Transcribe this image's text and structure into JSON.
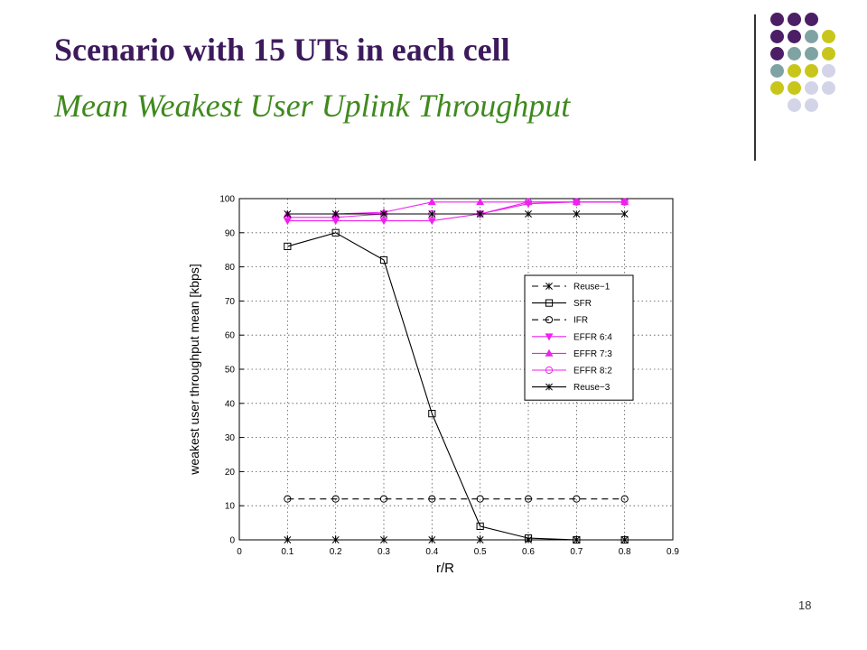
{
  "slide": {
    "title": "Scenario with 15 UTs in each cell",
    "subtitle": "Mean Weakest User Uplink Throughput",
    "page_number": "18",
    "colors": {
      "title": "#3d1a5c",
      "subtitle": "#3f8a1e",
      "dot_purple": "#4b1e66",
      "dot_teal": "#7fa3a3",
      "dot_olive": "#c8c61a",
      "dot_lavender": "#d4d4e8"
    }
  },
  "chart_data": {
    "type": "line",
    "title": "",
    "xlabel": "r/R",
    "ylabel": "weakest user throughput mean [kbps]",
    "xlim": [
      0,
      0.9
    ],
    "ylim": [
      0,
      100
    ],
    "xticks": [
      "0",
      "0.1",
      "0.2",
      "0.3",
      "0.4",
      "0.5",
      "0.6",
      "0.7",
      "0.8",
      "0.9"
    ],
    "yticks": [
      "0",
      "10",
      "20",
      "30",
      "40",
      "50",
      "60",
      "70",
      "80",
      "90",
      "100"
    ],
    "grid": true,
    "legend_position": "center-right",
    "x": [
      0.1,
      0.2,
      0.3,
      0.4,
      0.5,
      0.6,
      0.7,
      0.8
    ],
    "series": [
      {
        "name": "Reuse−1",
        "values": [
          0,
          0,
          0,
          0,
          0,
          0,
          0,
          0
        ],
        "color": "#000000",
        "dash": "dash",
        "marker": "star"
      },
      {
        "name": "SFR",
        "values": [
          86,
          90,
          82,
          37,
          4,
          0.5,
          0,
          0
        ],
        "color": "#000000",
        "dash": "solid",
        "marker": "square"
      },
      {
        "name": "IFR",
        "values": [
          12,
          12,
          12,
          12,
          12,
          12,
          12,
          12
        ],
        "color": "#000000",
        "dash": "dash",
        "marker": "circle"
      },
      {
        "name": "EFFR 6:4",
        "values": [
          93.5,
          93.5,
          93.5,
          93.5,
          95.5,
          98.5,
          99,
          99
        ],
        "color": "#ee22ee",
        "dash": "solid",
        "marker": "triangle-down"
      },
      {
        "name": "EFFR 7:3",
        "values": [
          95.5,
          95.5,
          96,
          99,
          99,
          99,
          99,
          99
        ],
        "color": "#ee22ee",
        "dash": "solid",
        "marker": "triangle-up"
      },
      {
        "name": "EFFR 8:2",
        "values": [
          94.5,
          94.5,
          95.5,
          95.5,
          95.5,
          99,
          99,
          99
        ],
        "color": "#ee22ee",
        "dash": "solid",
        "marker": "circle"
      },
      {
        "name": "Reuse−3",
        "values": [
          95.5,
          95.5,
          95.5,
          95.5,
          95.5,
          95.5,
          95.5,
          95.5
        ],
        "color": "#000000",
        "dash": "solid",
        "marker": "star"
      }
    ]
  }
}
